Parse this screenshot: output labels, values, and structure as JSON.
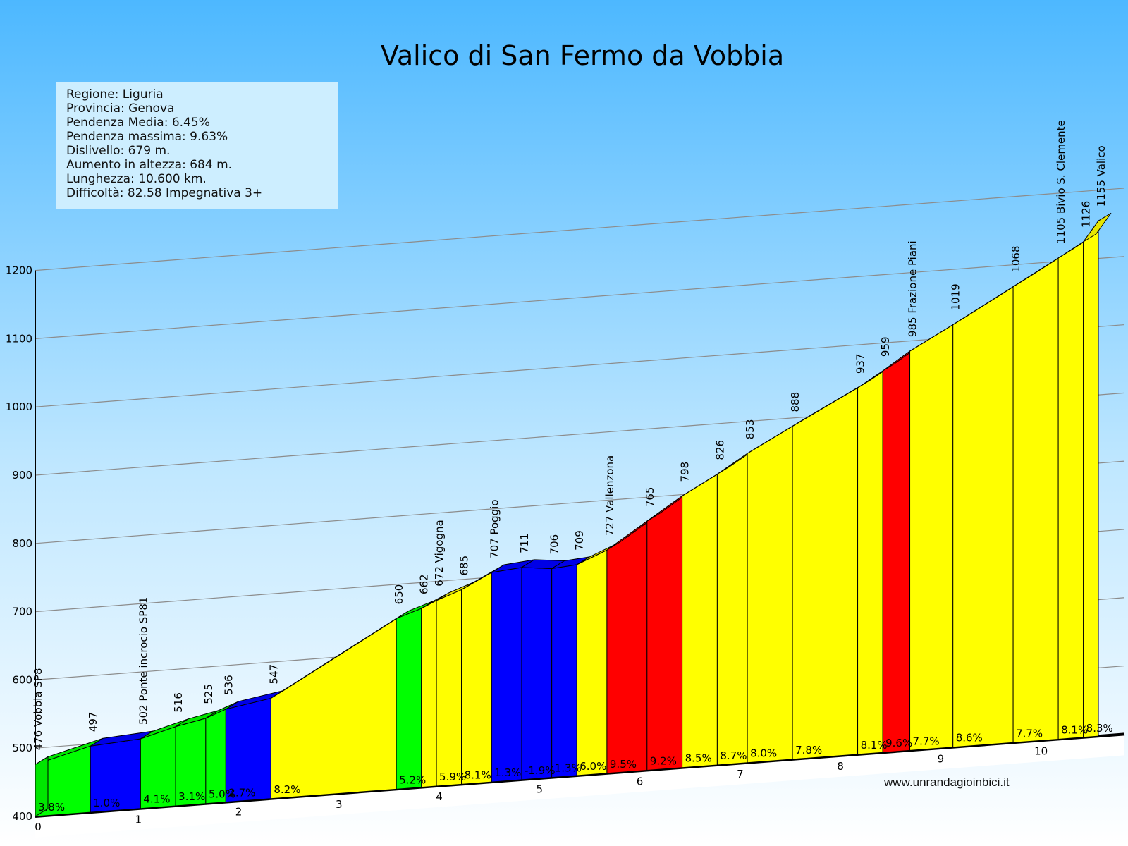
{
  "title": "Valico di San Fermo da Vobbia",
  "info": [
    "Regione: Liguria",
    "Provincia: Genova",
    "Pendenza Media: 6.45%",
    "Pendenza massima: 9.63%",
    "Dislivello: 679  m.",
    "Aumento in altezza: 684  m.",
    "Lunghezza:  10.600 km.",
    "Difficoltà: 82.58 Impegnativa 3+"
  ],
  "website": "www.unrandagioinbici.it",
  "colors": {
    "sky_top": "#4db8ff",
    "sky_bottom": "#ffffff",
    "green": "#00ff00",
    "blue": "#0000ff",
    "yellow": "#ffff00",
    "red": "#ff0000"
  },
  "chart_data": {
    "type": "area",
    "title": "Valico di San Fermo da Vobbia",
    "xlabel": "",
    "ylabel": "",
    "ylim": [
      400,
      1200
    ],
    "xlim": [
      0,
      10.6
    ],
    "y_ticks": [
      400,
      500,
      600,
      700,
      800,
      900,
      1000,
      1100,
      1200
    ],
    "x_ticks": [
      "0",
      "1",
      "2",
      "3",
      "4",
      "5",
      "6",
      "7",
      "8",
      "9",
      "10"
    ],
    "grid": true,
    "points": [
      {
        "km": 0.0,
        "alt": 476,
        "label": "476 Vobbia SP8"
      },
      {
        "km": 0.55,
        "alt": 497,
        "label": "497"
      },
      {
        "km": 1.05,
        "alt": 502,
        "label": "502 Ponte incrocio SP81"
      },
      {
        "km": 1.4,
        "alt": 516,
        "label": "516"
      },
      {
        "km": 1.7,
        "alt": 525,
        "label": "525"
      },
      {
        "km": 1.9,
        "alt": 536,
        "label": "536"
      },
      {
        "km": 2.35,
        "alt": 547,
        "label": "547"
      },
      {
        "km": 3.6,
        "alt": 650,
        "label": "650"
      },
      {
        "km": 3.85,
        "alt": 662,
        "label": "662"
      },
      {
        "km": 4.0,
        "alt": 672,
        "label": "672 Vigogna"
      },
      {
        "km": 4.25,
        "alt": 685,
        "label": "685"
      },
      {
        "km": 4.55,
        "alt": 707,
        "label": "707 Poggio"
      },
      {
        "km": 4.85,
        "alt": 711,
        "label": "711"
      },
      {
        "km": 5.15,
        "alt": 706,
        "label": "706"
      },
      {
        "km": 5.4,
        "alt": 709,
        "label": "709"
      },
      {
        "km": 5.7,
        "alt": 727,
        "label": "727 Vallenzona"
      },
      {
        "km": 6.1,
        "alt": 765,
        "label": "765"
      },
      {
        "km": 6.45,
        "alt": 798,
        "label": "798"
      },
      {
        "km": 6.8,
        "alt": 826,
        "label": "826"
      },
      {
        "km": 7.1,
        "alt": 853,
        "label": "853"
      },
      {
        "km": 7.55,
        "alt": 888,
        "label": "888"
      },
      {
        "km": 8.2,
        "alt": 937,
        "label": "937"
      },
      {
        "km": 8.45,
        "alt": 959,
        "label": "959"
      },
      {
        "km": 8.72,
        "alt": 985,
        "label": "985 Frazione Piani"
      },
      {
        "km": 9.15,
        "alt": 1019,
        "label": "1019"
      },
      {
        "km": 9.75,
        "alt": 1068,
        "label": "1068"
      },
      {
        "km": 10.2,
        "alt": 1105,
        "label": "1105 Bivio S. Clemente"
      },
      {
        "km": 10.45,
        "alt": 1126,
        "label": "1126"
      },
      {
        "km": 10.6,
        "alt": 1155,
        "label": "1155 Valico"
      }
    ],
    "segments": [
      {
        "grade": "3.8%",
        "color": "green"
      },
      {
        "grade": "1.0%",
        "color": "blue"
      },
      {
        "grade": "4.1%",
        "color": "green"
      },
      {
        "grade": "3.1%",
        "color": "green"
      },
      {
        "grade": "5.0%",
        "color": "green"
      },
      {
        "grade": "2.7%",
        "color": "blue"
      },
      {
        "grade": "8.2%",
        "color": "yellow"
      },
      {
        "grade": "5.2%",
        "color": "green"
      },
      {
        "grade": "",
        "color": "yellow"
      },
      {
        "grade": "5.9%",
        "color": "yellow"
      },
      {
        "grade": "8.1%",
        "color": "yellow"
      },
      {
        "grade": "1.3%",
        "color": "blue"
      },
      {
        "grade": "-1.9%",
        "color": "blue"
      },
      {
        "grade": "1.3%",
        "color": "blue"
      },
      {
        "grade": "6.0%",
        "color": "yellow"
      },
      {
        "grade": "9.5%",
        "color": "red"
      },
      {
        "grade": "9.2%",
        "color": "red"
      },
      {
        "grade": "8.5%",
        "color": "yellow"
      },
      {
        "grade": "8.7%",
        "color": "yellow"
      },
      {
        "grade": "8.0%",
        "color": "yellow"
      },
      {
        "grade": "7.8%",
        "color": "yellow"
      },
      {
        "grade": "8.1%",
        "color": "yellow"
      },
      {
        "grade": "9.6%",
        "color": "red"
      },
      {
        "grade": "7.7%",
        "color": "yellow"
      },
      {
        "grade": "8.6%",
        "color": "yellow"
      },
      {
        "grade": "7.7%",
        "color": "yellow"
      },
      {
        "grade": "8.1%",
        "color": "yellow"
      },
      {
        "grade": "8.3%",
        "color": "yellow"
      }
    ]
  }
}
